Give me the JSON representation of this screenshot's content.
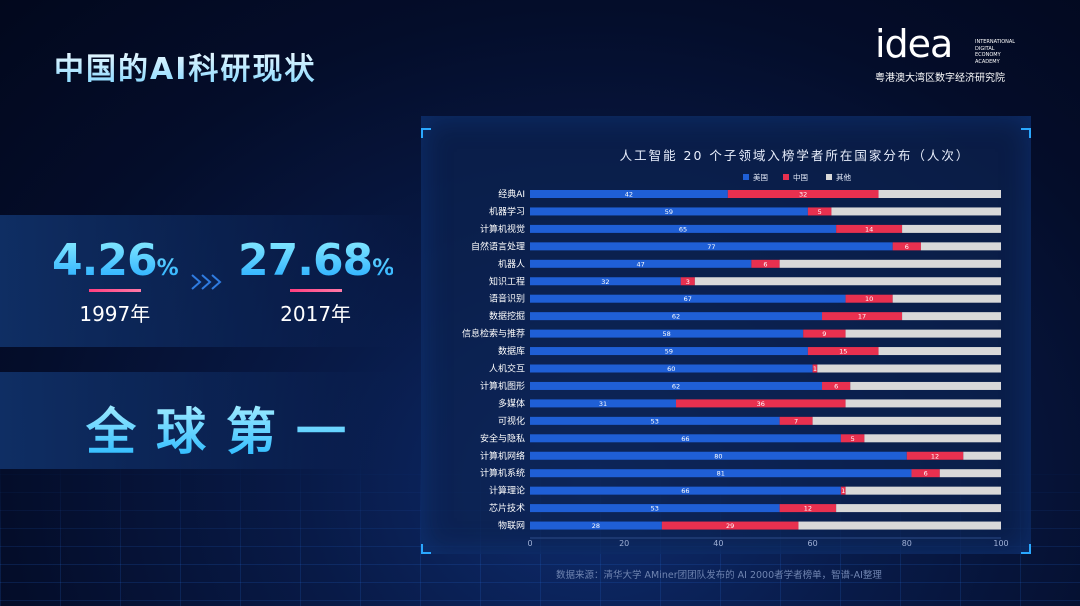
{
  "header": {
    "title": "中国的AI科研现状",
    "logo_word": "idea",
    "logo_sub": [
      "INTERNATIONAL",
      "DIGITAL",
      "ECONOMY",
      "ACADEMY"
    ],
    "logo_cn": "粤港澳大湾区数字经济研究院"
  },
  "stats": [
    {
      "value": "4.26",
      "unit": "%",
      "year": "1997年"
    },
    {
      "value": "27.68",
      "unit": "%",
      "year": "2017年"
    }
  ],
  "rank": "全球第一",
  "source": "数据来源：清华大学 AMiner团团队发布的 AI 2000者学者榜单，智谱-AI整理",
  "colors": {
    "us": "#1f5fd6",
    "cn": "#e8304f",
    "other": "#d9d9d9"
  },
  "chart_data": {
    "type": "bar",
    "orientation": "horizontal",
    "stacked": true,
    "title": "人工智能 20 个子领域入榜学者所在国家分布（人次）",
    "legend_position": "top",
    "categories": [
      "经典AI",
      "机器学习",
      "计算机视觉",
      "自然语言处理",
      "机器人",
      "知识工程",
      "语音识别",
      "数据挖掘",
      "信息检索与推荐",
      "数据库",
      "人机交互",
      "计算机图形",
      "多媒体",
      "可视化",
      "安全与隐私",
      "计算机网络",
      "计算机系统",
      "计算理论",
      "芯片技术",
      "物联网"
    ],
    "series": [
      {
        "name": "美国",
        "values": [
          42,
          59,
          65,
          77,
          47,
          32,
          67,
          62,
          58,
          59,
          60,
          62,
          31,
          53,
          66,
          80,
          81,
          66,
          53,
          28
        ]
      },
      {
        "name": "中国",
        "values": [
          32,
          5,
          14,
          6,
          6,
          3,
          10,
          17,
          9,
          15,
          1,
          6,
          36,
          7,
          5,
          12,
          6,
          1,
          12,
          29
        ]
      },
      {
        "name": "其他",
        "values": [
          26,
          36,
          21,
          17,
          47,
          65,
          23,
          21,
          33,
          26,
          39,
          32,
          33,
          40,
          29,
          8,
          13,
          33,
          35,
          43
        ]
      }
    ],
    "xlim": [
      0,
      100
    ],
    "xticks": [
      0,
      20,
      40,
      60,
      80,
      100
    ]
  }
}
